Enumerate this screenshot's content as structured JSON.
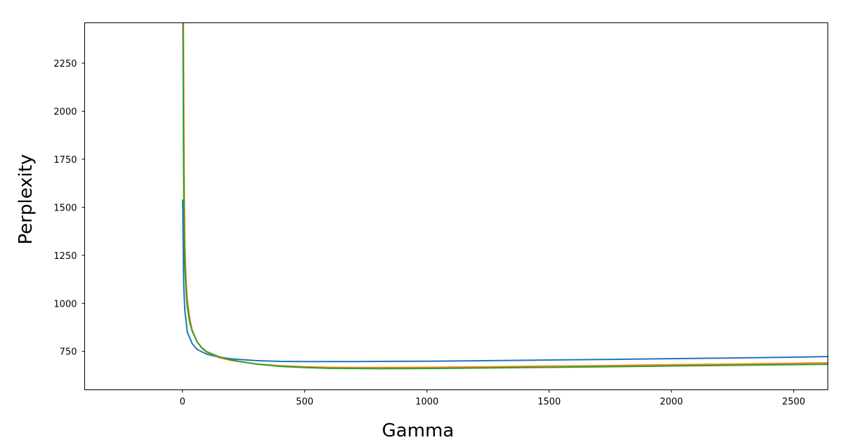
{
  "chart_data": {
    "type": "line",
    "title": "",
    "xlabel": "Gamma",
    "ylabel": "Perplexity",
    "xlim": [
      -400,
      2640
    ],
    "ylim": [
      550,
      2460
    ],
    "xticks": [
      0,
      500,
      1000,
      1500,
      2000,
      2500
    ],
    "yticks": [
      750,
      1000,
      1250,
      1500,
      1750,
      2000,
      2250
    ],
    "grid": false,
    "legend": "none",
    "series": [
      {
        "color": "#1f77b4",
        "x": [
          1,
          5,
          10,
          20,
          40,
          60,
          100,
          150,
          200,
          300,
          400,
          500,
          600,
          700,
          800,
          1000,
          1200,
          1500,
          1800,
          2000,
          2200,
          2500,
          2640
        ],
        "y": [
          1540,
          1100,
          960,
          850,
          790,
          760,
          735,
          720,
          711,
          702,
          698,
          697,
          697,
          697,
          698,
          699,
          701,
          705,
          709,
          712,
          715,
          720,
          723
        ]
      },
      {
        "color": "#ff7f0e",
        "x": [
          4,
          6,
          8,
          10,
          15,
          20,
          30,
          40,
          60,
          80,
          100,
          150,
          200,
          300,
          400,
          500,
          600,
          700,
          800,
          1000,
          1200,
          1500,
          1800,
          2000,
          2200,
          2500,
          2640
        ],
        "y": [
          2460,
          1900,
          1500,
          1300,
          1120,
          1020,
          920,
          860,
          800,
          765,
          745,
          718,
          703,
          685,
          675,
          670,
          667,
          666,
          666,
          667,
          669,
          673,
          677,
          680,
          683,
          688,
          690
        ]
      },
      {
        "color": "#2ca02c",
        "x": [
          2,
          3,
          4,
          5,
          6,
          8,
          10,
          15,
          20,
          30,
          40,
          60,
          80,
          100,
          150,
          200,
          300,
          400,
          500,
          600,
          700,
          800,
          1000,
          1200,
          1500,
          1800,
          2000,
          2200,
          2500,
          2640
        ],
        "y": [
          2460,
          2200,
          1900,
          1650,
          1500,
          1300,
          1180,
          1060,
          980,
          900,
          855,
          800,
          768,
          748,
          722,
          705,
          684,
          672,
          666,
          662,
          661,
          660,
          661,
          663,
          667,
          671,
          674,
          677,
          681,
          683
        ]
      }
    ]
  }
}
